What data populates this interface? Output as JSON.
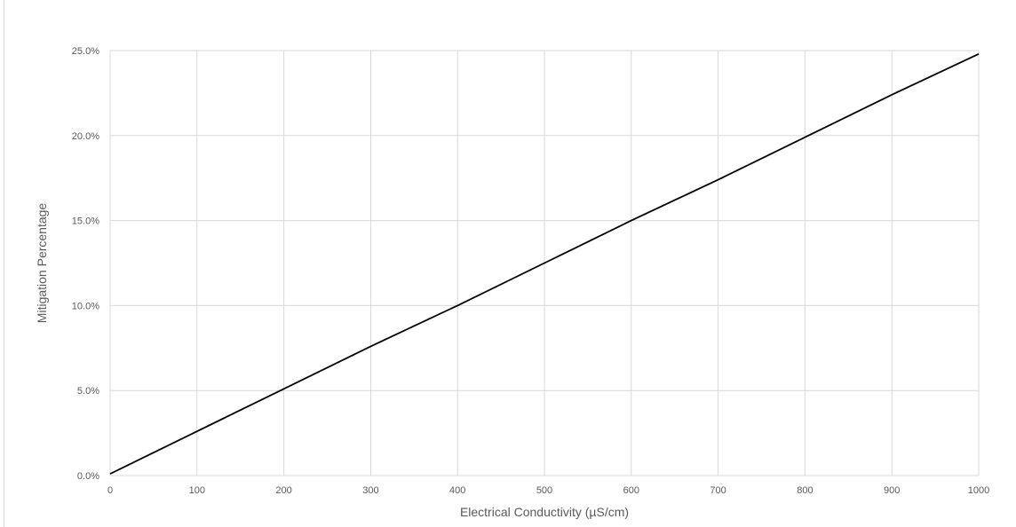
{
  "chart_data": {
    "type": "line",
    "title": "",
    "xlabel": "Electrical Conductivity (µS/cm)",
    "ylabel": "Mitigation Percentage",
    "xlim": [
      0,
      1000
    ],
    "ylim": [
      0,
      25
    ],
    "x_ticks": [
      "0",
      "100",
      "200",
      "300",
      "400",
      "500",
      "600",
      "700",
      "800",
      "900",
      "1000"
    ],
    "y_ticks": [
      "0.0%",
      "5.0%",
      "10.0%",
      "15.0%",
      "20.0%",
      "25.0%"
    ],
    "grid": true,
    "legend": "none",
    "series": [
      {
        "color": "#000000",
        "x": [
          0,
          100,
          200,
          300,
          400,
          500,
          600,
          700,
          800,
          900,
          1000
        ],
        "y": [
          0.1,
          2.6,
          5.1,
          7.6,
          10.0,
          12.5,
          15.0,
          17.4,
          19.9,
          22.4,
          24.8
        ]
      }
    ]
  },
  "colors": {
    "grid": "#d9d9d9",
    "text": "#595959",
    "line": "#000000"
  }
}
